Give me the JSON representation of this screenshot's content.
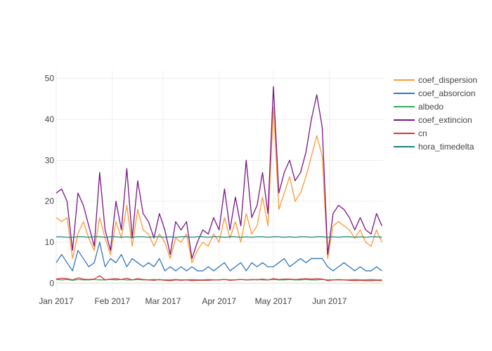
{
  "chart_data": {
    "type": "line",
    "x_type": "date",
    "xlim": [
      "2017-01-01",
      "2017-07-01"
    ],
    "ylim": [
      -2,
      52
    ],
    "grid": true,
    "legend_position": "right",
    "x_ticks": [
      {
        "date": "2017-01-01",
        "label": "Jan 2017"
      },
      {
        "date": "2017-02-01",
        "label": "Feb 2017"
      },
      {
        "date": "2017-03-01",
        "label": "Mar 2017"
      },
      {
        "date": "2017-04-01",
        "label": "Apr 2017"
      },
      {
        "date": "2017-05-01",
        "label": "May 2017"
      },
      {
        "date": "2017-06-01",
        "label": "Jun 2017"
      }
    ],
    "y_ticks": [
      {
        "value": 0,
        "label": "0"
      },
      {
        "value": 10,
        "label": "10"
      },
      {
        "value": 20,
        "label": "20"
      },
      {
        "value": 30,
        "label": "30"
      },
      {
        "value": 40,
        "label": "40"
      },
      {
        "value": 50,
        "label": "50"
      }
    ],
    "x": [
      "2017-01-01",
      "2017-01-04",
      "2017-01-07",
      "2017-01-10",
      "2017-01-13",
      "2017-01-16",
      "2017-01-19",
      "2017-01-22",
      "2017-01-25",
      "2017-01-28",
      "2017-01-31",
      "2017-02-03",
      "2017-02-06",
      "2017-02-09",
      "2017-02-12",
      "2017-02-15",
      "2017-02-18",
      "2017-02-21",
      "2017-02-24",
      "2017-02-27",
      "2017-03-02",
      "2017-03-05",
      "2017-03-08",
      "2017-03-11",
      "2017-03-14",
      "2017-03-17",
      "2017-03-20",
      "2017-03-23",
      "2017-03-26",
      "2017-03-29",
      "2017-04-01",
      "2017-04-04",
      "2017-04-07",
      "2017-04-10",
      "2017-04-13",
      "2017-04-16",
      "2017-04-19",
      "2017-04-22",
      "2017-04-25",
      "2017-04-28",
      "2017-05-01",
      "2017-05-04",
      "2017-05-07",
      "2017-05-10",
      "2017-05-13",
      "2017-05-16",
      "2017-05-19",
      "2017-05-22",
      "2017-05-25",
      "2017-05-28",
      "2017-05-31",
      "2017-06-03",
      "2017-06-06",
      "2017-06-09",
      "2017-06-12",
      "2017-06-15",
      "2017-06-18",
      "2017-06-21",
      "2017-06-24",
      "2017-06-27",
      "2017-06-30"
    ],
    "series": [
      {
        "name": "coef_dispersion",
        "color": "#ff9933",
        "values": [
          16,
          15,
          16,
          6,
          12,
          15,
          11,
          8,
          16,
          11,
          7,
          15,
          11,
          19,
          9,
          18,
          13,
          12,
          9,
          12,
          10,
          6,
          11,
          10,
          12,
          5,
          8,
          10,
          9,
          12,
          10,
          16,
          11,
          15,
          10,
          17,
          12,
          14,
          21,
          14,
          43,
          18,
          22,
          26,
          20,
          22,
          26,
          31,
          36,
          31,
          6,
          14,
          15,
          14,
          13,
          11,
          13,
          10,
          9,
          13,
          10
        ]
      },
      {
        "name": "coef_absorcion",
        "color": "#3377bb",
        "values": [
          5,
          7,
          5,
          3,
          8,
          6,
          4,
          5,
          10,
          4,
          6,
          5,
          7,
          4,
          6,
          5,
          4,
          5,
          4,
          6,
          3,
          4,
          3,
          4,
          3,
          4,
          3,
          3,
          4,
          3,
          4,
          5,
          3,
          4,
          5,
          3,
          5,
          4,
          5,
          4,
          4,
          5,
          6,
          4,
          5,
          6,
          5,
          6,
          6,
          6,
          4,
          3,
          4,
          5,
          4,
          3,
          4,
          3,
          3,
          4,
          3
        ]
      },
      {
        "name": "albedo",
        "color": "#33aa55",
        "values": [
          0.9,
          0.8,
          0.9,
          0.7,
          0.9,
          0.8,
          0.8,
          0.9,
          0.8,
          0.8,
          0.9,
          0.8,
          0.9,
          0.8,
          0.8,
          0.9,
          0.8,
          0.8,
          0.9,
          0.8,
          0.8,
          0.8,
          0.9,
          0.8,
          0.8,
          0.9,
          0.8,
          0.8,
          0.9,
          0.8,
          0.8,
          0.9,
          0.8,
          0.8,
          0.9,
          0.8,
          0.8,
          0.9,
          0.8,
          0.8,
          0.9,
          0.8,
          0.8,
          0.9,
          0.8,
          0.8,
          0.9,
          0.8,
          0.8,
          0.9,
          0.8,
          0.8,
          0.9,
          0.8,
          0.8,
          0.9,
          0.8,
          0.8,
          0.9,
          0.8,
          0.8
        ]
      },
      {
        "name": "coef_extincion",
        "color": "#7a1487",
        "values": [
          22,
          23,
          20,
          8,
          22,
          19,
          14,
          9,
          27,
          13,
          8,
          20,
          13,
          28,
          11,
          25,
          17,
          15,
          11,
          17,
          13,
          7,
          15,
          13,
          15,
          6,
          10,
          13,
          12,
          16,
          13,
          23,
          13,
          21,
          14,
          30,
          16,
          19,
          27,
          17,
          48,
          22,
          27,
          30,
          25,
          27,
          32,
          40,
          46,
          38,
          7,
          17,
          19,
          18,
          16,
          13,
          16,
          13,
          12,
          17,
          14
        ]
      },
      {
        "name": "cn",
        "color": "#d9383a",
        "values": [
          1.0,
          1.2,
          1.1,
          0.8,
          1.3,
          1.0,
          0.9,
          1.0,
          1.8,
          0.8,
          1.0,
          1.1,
          0.9,
          1.2,
          0.8,
          1.1,
          0.9,
          0.8,
          0.7,
          0.9,
          0.7,
          0.6,
          0.8,
          0.7,
          0.8,
          0.6,
          0.7,
          0.7,
          0.7,
          0.8,
          0.8,
          0.9,
          0.7,
          0.8,
          0.9,
          0.8,
          0.9,
          0.8,
          1.0,
          0.8,
          1.1,
          0.9,
          1.0,
          1.0,
          0.9,
          1.0,
          1.1,
          1.0,
          1.1,
          1.0,
          0.6,
          0.8,
          0.8,
          0.8,
          0.7,
          0.6,
          0.7,
          0.6,
          0.6,
          0.7,
          0.6
        ]
      },
      {
        "name": "hora_timedelta",
        "color": "#1a7f7f",
        "values": [
          11.3,
          11.3,
          11.2,
          11.2,
          11.3,
          11.3,
          11.2,
          11.3,
          11.3,
          11.2,
          11.3,
          11.3,
          11.2,
          11.3,
          11.2,
          11.3,
          11.3,
          11.2,
          11.3,
          11.3,
          11.2,
          11.3,
          11.2,
          11.3,
          11.3,
          11.2,
          11.3,
          11.3,
          11.2,
          11.3,
          11.3,
          11.2,
          11.3,
          11.3,
          11.2,
          11.3,
          11.2,
          11.3,
          11.3,
          11.2,
          11.3,
          11.3,
          11.2,
          11.3,
          11.2,
          11.3,
          11.3,
          11.2,
          11.3,
          11.3,
          11.2,
          11.3,
          11.2,
          11.3,
          11.3,
          11.2,
          11.3,
          11.2,
          11.3,
          11.3,
          11.2
        ]
      }
    ]
  }
}
